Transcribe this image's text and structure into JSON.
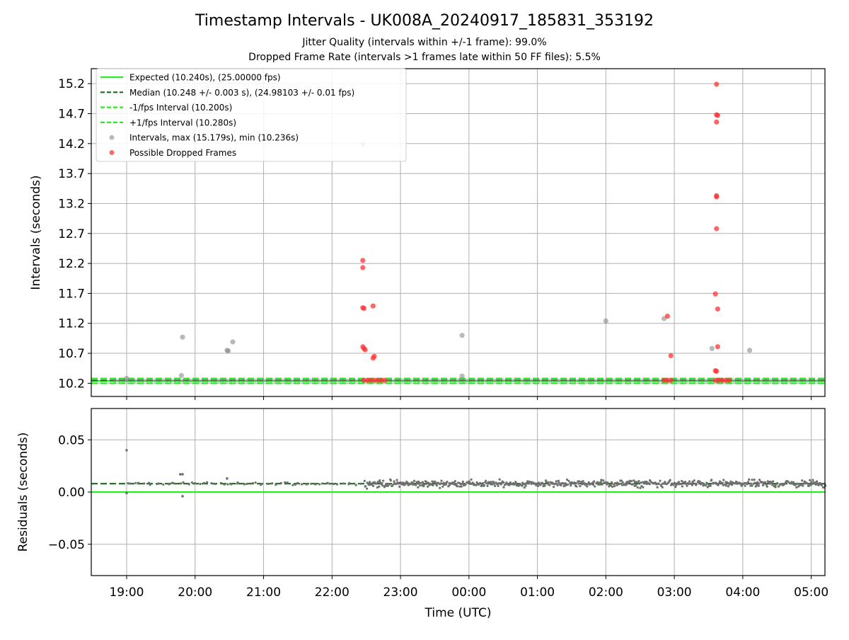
{
  "chart_data": [
    {
      "type": "scatter",
      "panel": "intervals",
      "title": "Timestamp Intervals - UK008A_20240917_185831_353192",
      "subtitle_lines": [
        "Jitter Quality (intervals within +/-1 frame): 99.0%",
        "Dropped Frame Rate (intervals >1 frames late within 50 FF files): 5.5%"
      ],
      "ylabel": "Intervals (seconds)",
      "xlabel": "",
      "ylim": [
        9.98,
        15.45
      ],
      "xlim": [
        "18:29",
        "05:12"
      ],
      "x_unit": "time (UTC, HH:MM)",
      "yticks": [
        "10.2",
        "10.7",
        "11.2",
        "11.7",
        "12.2",
        "12.7",
        "13.2",
        "13.7",
        "14.2",
        "14.7",
        "15.2"
      ],
      "grid": true,
      "legend_position": "upper-left",
      "lines": [
        {
          "name": "Expected (10.240s), (25.00000 fps)",
          "y": 10.24,
          "style": "solid",
          "color": "#22ee22"
        },
        {
          "name": "Median (10.248 +/- 0.003 s), (24.98103 +/- 0.01 fps)",
          "y": 10.248,
          "style": "dashed",
          "color": "#1a6b1a"
        },
        {
          "name": "-1/fps Interval (10.200s)",
          "y": 10.2,
          "style": "dashed",
          "color": "#22ee22"
        },
        {
          "name": "+1/fps Interval (10.280s)",
          "y": 10.28,
          "style": "dashed",
          "color": "#22ee22"
        }
      ],
      "series": [
        {
          "name": "Intervals, max (15.179s), min (10.236s)",
          "color": "#808080",
          "baseline": {
            "y": 10.245,
            "x_start": "18:50",
            "x_end": "05:12"
          },
          "points": [
            [
              "19:00",
              10.28
            ],
            [
              "19:48",
              10.33
            ],
            [
              "19:49",
              10.97
            ],
            [
              "20:28",
              10.75
            ],
            [
              "20:29",
              10.74
            ],
            [
              "20:33",
              10.89
            ],
            [
              "22:27",
              14.18
            ],
            [
              "23:54",
              11.0
            ],
            [
              "23:54",
              10.32
            ],
            [
              "02:00",
              11.24
            ],
            [
              "02:51",
              11.28
            ],
            [
              "03:33",
              10.78
            ],
            [
              "04:06",
              10.75
            ],
            [
              "03:38",
              10.25
            ]
          ]
        },
        {
          "name": "Possible Dropped Frames",
          "color": "#ff3333",
          "points": [
            [
              "22:27",
              12.25
            ],
            [
              "22:27",
              12.13
            ],
            [
              "22:27",
              11.46
            ],
            [
              "22:28",
              11.45
            ],
            [
              "22:27",
              10.81
            ],
            [
              "22:28",
              10.78
            ],
            [
              "22:29",
              10.76
            ],
            [
              "22:36",
              11.49
            ],
            [
              "22:37",
              10.65
            ],
            [
              "22:36",
              10.62
            ],
            [
              "22:28",
              10.25
            ],
            [
              "22:31",
              10.25
            ],
            [
              "22:34",
              10.25
            ],
            [
              "22:37",
              10.25
            ],
            [
              "22:40",
              10.25
            ],
            [
              "22:43",
              10.25
            ],
            [
              "22:46",
              10.25
            ],
            [
              "02:54",
              11.32
            ],
            [
              "02:57",
              10.66
            ],
            [
              "02:51",
              10.25
            ],
            [
              "02:54",
              10.25
            ],
            [
              "02:57",
              10.25
            ],
            [
              "03:37",
              15.19
            ],
            [
              "03:37",
              14.68
            ],
            [
              "03:38",
              14.67
            ],
            [
              "03:37",
              14.56
            ],
            [
              "03:37",
              13.33
            ],
            [
              "03:37",
              13.31
            ],
            [
              "03:37",
              12.78
            ],
            [
              "03:36",
              11.69
            ],
            [
              "03:38",
              11.44
            ],
            [
              "03:38",
              10.81
            ],
            [
              "03:36",
              10.41
            ],
            [
              "03:37",
              10.4
            ],
            [
              "03:36",
              10.25
            ],
            [
              "03:39",
              10.25
            ],
            [
              "03:42",
              10.25
            ],
            [
              "03:45",
              10.25
            ],
            [
              "03:48",
              10.25
            ]
          ]
        }
      ]
    },
    {
      "type": "scatter",
      "panel": "residuals",
      "title": "",
      "ylabel": "Residuals (seconds)",
      "xlabel": "Time (UTC)",
      "ylim": [
        -0.08,
        0.08
      ],
      "xlim": [
        "18:29",
        "05:12"
      ],
      "yticks": [
        "0.05",
        "0.00",
        "−0.05"
      ],
      "ytick_values": [
        0.05,
        0.0,
        -0.05
      ],
      "xticks": [
        "19:00",
        "20:00",
        "21:00",
        "22:00",
        "23:00",
        "00:00",
        "01:00",
        "02:00",
        "03:00",
        "04:00",
        "05:00"
      ],
      "grid": true,
      "lines": [
        {
          "name": "Expected",
          "y": 0.0,
          "style": "solid",
          "color": "#22ee22"
        },
        {
          "name": "Median",
          "y": 0.008,
          "style": "dashed",
          "color": "#1a6b1a"
        }
      ],
      "series": [
        {
          "name": "Residuals",
          "color": "#707070",
          "segments": [
            {
              "x_start": "18:59",
              "x_end": "22:25",
              "center": 0.008,
              "spread": 0.002
            },
            {
              "x_start": "22:28",
              "x_end": "05:12",
              "center": 0.008,
              "spread": 0.005
            }
          ],
          "outliers": [
            [
              "19:00",
              0.04
            ],
            [
              "19:00",
              -0.001
            ],
            [
              "19:47",
              0.017
            ],
            [
              "19:49",
              0.017
            ],
            [
              "19:49",
              -0.004
            ],
            [
              "20:28",
              0.013
            ]
          ]
        }
      ]
    }
  ]
}
